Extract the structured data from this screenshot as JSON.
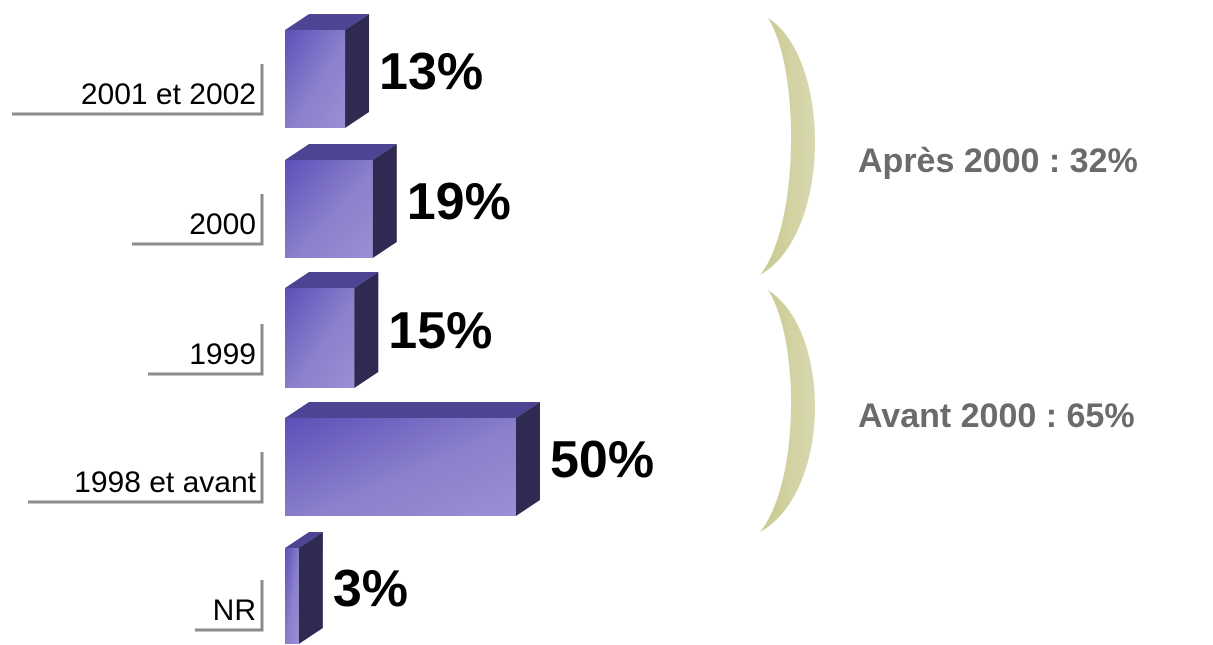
{
  "chart_data": {
    "type": "bar",
    "orientation": "horizontal",
    "categories": [
      "2001 et 2002",
      "2000",
      "1999",
      "1998 et avant",
      "NR"
    ],
    "values": [
      13,
      19,
      15,
      50,
      3
    ],
    "value_labels": [
      "13%",
      "19%",
      "15%",
      "50%",
      "3%"
    ],
    "unit": "%",
    "groups": [
      {
        "label": "Après 2000 : 32%",
        "categories": [
          "2001 et 2002",
          "2000"
        ],
        "value": 32
      },
      {
        "label": "Avant 2000 : 65%",
        "categories": [
          "1999",
          "1998 et avant"
        ],
        "value": 65
      }
    ],
    "colors": {
      "bar_front": "#8a80cc",
      "bar_front_dark": "#5d4fb8",
      "bar_top": "#4d4593",
      "bar_side": "#2e2a52",
      "brace": "#c9c990",
      "group_text": "#6b6b6b",
      "underline": "#8c8c8c"
    },
    "grid": false,
    "legend": "none"
  }
}
